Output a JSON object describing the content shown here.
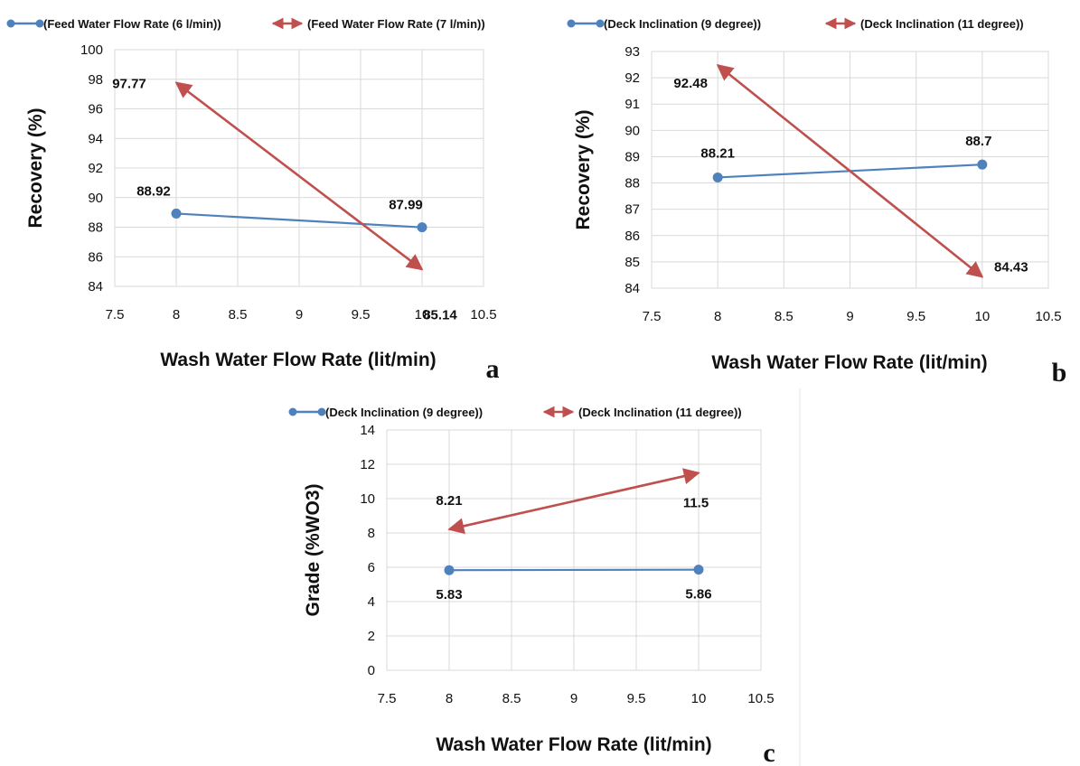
{
  "colors": {
    "series1": "#4f81bd",
    "series2": "#c0504d",
    "grid": "#d9d9d9",
    "axis": "#888888"
  },
  "chart_data": [
    {
      "type": "line",
      "panel": "a",
      "xlabel": "Wash Water Flow Rate (lit/min)",
      "ylabel": "Recovery (%)",
      "xlim": [
        7.5,
        10.5
      ],
      "ylim": [
        84,
        100
      ],
      "xticks": [
        "7.5",
        "8",
        "8.5",
        "9",
        "9.5",
        "10",
        "10.5"
      ],
      "yticks": [
        "84",
        "86",
        "88",
        "90",
        "92",
        "94",
        "96",
        "98",
        "100"
      ],
      "grid": true,
      "legend": "top",
      "series": [
        {
          "name": "(Feed Water Flow Rate (6 l/min))",
          "marker": "circle",
          "x": [
            8,
            10
          ],
          "y": [
            88.92,
            87.99
          ],
          "labels": [
            "88.92",
            "87.99"
          ]
        },
        {
          "name": "(Feed Water Flow Rate (7 l/min))",
          "marker": "arrow",
          "x": [
            8,
            10
          ],
          "y": [
            97.77,
            85.14
          ],
          "labels": [
            "97.77",
            "85.14"
          ]
        }
      ]
    },
    {
      "type": "line",
      "panel": "b",
      "xlabel": "Wash Water Flow Rate (lit/min)",
      "ylabel": "Recovery (%)",
      "xlim": [
        7.5,
        10.5
      ],
      "ylim": [
        84,
        93
      ],
      "xticks": [
        "7.5",
        "8",
        "8.5",
        "9",
        "9.5",
        "10",
        "10.5"
      ],
      "yticks": [
        "84",
        "85",
        "86",
        "87",
        "88",
        "89",
        "90",
        "91",
        "92",
        "93"
      ],
      "grid": true,
      "legend": "top",
      "series": [
        {
          "name": "(Deck Inclination (9 degree))",
          "marker": "circle",
          "x": [
            8,
            10
          ],
          "y": [
            88.21,
            88.7
          ],
          "labels": [
            "88.21",
            "88.7"
          ]
        },
        {
          "name": "(Deck Inclination (11 degree))",
          "marker": "arrow",
          "x": [
            8,
            10
          ],
          "y": [
            92.48,
            84.43
          ],
          "labels": [
            "92.48",
            "84.43"
          ]
        }
      ]
    },
    {
      "type": "line",
      "panel": "c",
      "xlabel": "Wash Water Flow Rate (lit/min)",
      "ylabel": "Grade (%WO3)",
      "xlim": [
        7.5,
        10.5
      ],
      "ylim": [
        0,
        14
      ],
      "xticks": [
        "7.5",
        "8",
        "8.5",
        "9",
        "9.5",
        "10",
        "10.5"
      ],
      "yticks": [
        "0",
        "2",
        "4",
        "6",
        "8",
        "10",
        "12",
        "14"
      ],
      "grid": true,
      "legend": "top",
      "series": [
        {
          "name": "(Deck Inclination (9 degree))",
          "marker": "circle",
          "x": [
            8,
            10
          ],
          "y": [
            5.83,
            5.86
          ],
          "labels": [
            "5.83",
            "5.86"
          ]
        },
        {
          "name": "(Deck Inclination (11 degree))",
          "marker": "arrow",
          "x": [
            8,
            10
          ],
          "y": [
            8.21,
            11.5
          ],
          "labels": [
            "8.21",
            "11.5"
          ]
        }
      ]
    }
  ]
}
